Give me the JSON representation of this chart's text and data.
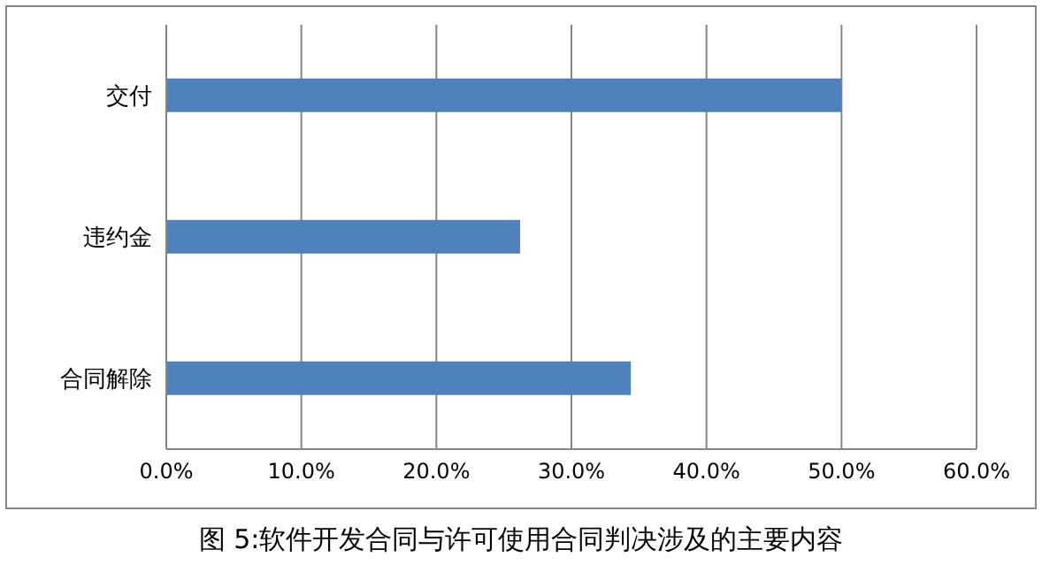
{
  "chart_data": {
    "type": "bar",
    "orientation": "horizontal",
    "title": "图 5:软件开发合同与许可使用合同判决涉及的主要内容",
    "categories": [
      "交付",
      "违约金",
      "合同解除"
    ],
    "values": [
      50,
      26.2,
      34.4
    ],
    "color": "#4f81bd",
    "xlim": [
      0,
      60
    ],
    "xticks": [
      {
        "value": 0,
        "label": "0.0%"
      },
      {
        "value": 10,
        "label": "10.0%"
      },
      {
        "value": 20,
        "label": "20.0%"
      },
      {
        "value": 30,
        "label": "30.0%"
      },
      {
        "value": 40,
        "label": "40.0%"
      },
      {
        "value": 50,
        "label": "50.0%"
      },
      {
        "value": 60,
        "label": "60.0%"
      }
    ],
    "grid": "x"
  }
}
